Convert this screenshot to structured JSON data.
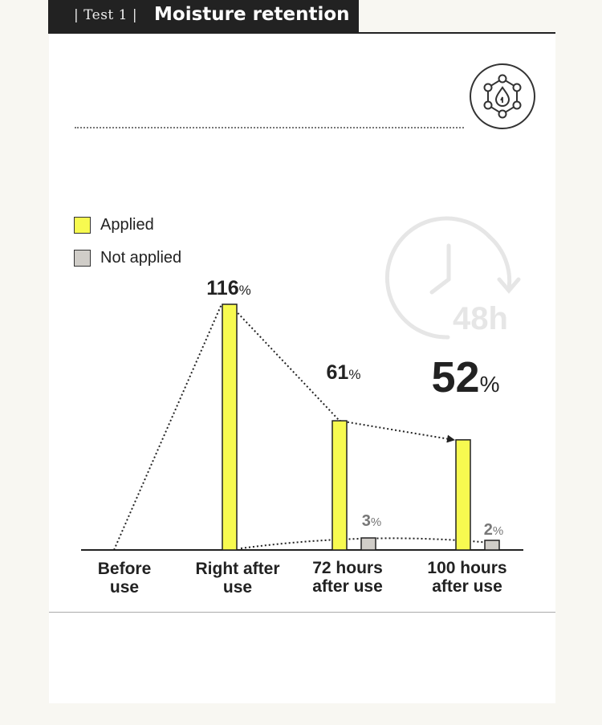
{
  "header": {
    "tag": "| Test 1 |",
    "title": "Moisture retention"
  },
  "icons": {
    "badge": "molecule-droplet-icon",
    "watermark": "clock-48h-icon"
  },
  "watermark_text": "48h",
  "colors": {
    "applied": "#f7fa50",
    "not_applied": "#d0cdc8",
    "header_bg": "#222222",
    "page_bg": "#f8f7f2"
  },
  "chart_data": {
    "type": "bar",
    "title": "Moisture retention",
    "categories": [
      "Before use",
      "Right after use",
      "72 hours after use",
      "100 hours after use"
    ],
    "category_lines": [
      [
        "Before",
        "use"
      ],
      [
        "Right after",
        "use"
      ],
      [
        "72 hours",
        "after use"
      ],
      [
        "100 hours",
        "after use"
      ]
    ],
    "series": [
      {
        "name": "Applied",
        "values": [
          0,
          116,
          61,
          52
        ],
        "labels": [
          "",
          "116",
          "61",
          "52"
        ],
        "unit": "%"
      },
      {
        "name": "Not applied",
        "values": [
          null,
          null,
          3,
          2
        ],
        "labels": [
          "",
          "",
          "3",
          "2"
        ],
        "unit": "%"
      }
    ],
    "ylim": [
      0,
      116
    ],
    "legend_position": "top-left",
    "grid": false
  }
}
